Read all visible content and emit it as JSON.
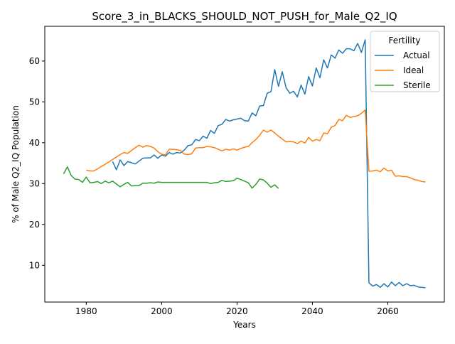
{
  "chart_data": {
    "type": "line",
    "title": "Score_3_in_BLACKS_SHOULD_NOT_PUSH_for_Male_Q2_IQ",
    "xlabel": "Years",
    "ylabel": "% of Male Q2_IQ Population",
    "xlim": [
      1969,
      2075
    ],
    "ylim": [
      1,
      68.5
    ],
    "xticks": [
      1980,
      2000,
      2020,
      2040,
      2060
    ],
    "yticks": [
      10,
      20,
      30,
      40,
      50,
      60
    ],
    "grid": false,
    "legend": {
      "title": "Fertility",
      "position": "top-right"
    },
    "series": [
      {
        "name": "Actual",
        "color": "#1f77b4",
        "points": [
          [
            1987,
            35.4
          ],
          [
            1988,
            33.4
          ],
          [
            1989,
            35.8
          ],
          [
            1990,
            34.4
          ],
          [
            1991,
            35.4
          ],
          [
            1992,
            35.1
          ],
          [
            1993,
            34.8
          ],
          [
            1994,
            35.5
          ],
          [
            1995,
            36.2
          ],
          [
            1996,
            36.3
          ],
          [
            1997,
            36.3
          ],
          [
            1998,
            37.0
          ],
          [
            1999,
            36.2
          ],
          [
            2000,
            37.0
          ],
          [
            2001,
            36.7
          ],
          [
            2002,
            37.6
          ],
          [
            2003,
            37.2
          ],
          [
            2004,
            37.6
          ],
          [
            2005,
            37.5
          ],
          [
            2006,
            38.2
          ],
          [
            2007,
            39.3
          ],
          [
            2008,
            39.5
          ],
          [
            2009,
            40.8
          ],
          [
            2010,
            40.5
          ],
          [
            2011,
            41.6
          ],
          [
            2012,
            41.1
          ],
          [
            2013,
            43.0
          ],
          [
            2014,
            42.3
          ],
          [
            2015,
            44.2
          ],
          [
            2016,
            44.5
          ],
          [
            2017,
            45.7
          ],
          [
            2018,
            45.3
          ],
          [
            2019,
            45.6
          ],
          [
            2020,
            45.8
          ],
          [
            2021,
            46.0
          ],
          [
            2022,
            45.4
          ],
          [
            2023,
            45.3
          ],
          [
            2024,
            47.3
          ],
          [
            2025,
            46.6
          ],
          [
            2026,
            49.0
          ],
          [
            2027,
            49.1
          ],
          [
            2028,
            52.1
          ],
          [
            2029,
            52.5
          ],
          [
            2030,
            57.9
          ],
          [
            2031,
            53.8
          ],
          [
            2032,
            57.4
          ],
          [
            2033,
            53.5
          ],
          [
            2034,
            52.1
          ],
          [
            2035,
            52.6
          ],
          [
            2036,
            51.2
          ],
          [
            2037,
            54.1
          ],
          [
            2038,
            51.9
          ],
          [
            2039,
            56.2
          ],
          [
            2040,
            53.9
          ],
          [
            2041,
            58.3
          ],
          [
            2042,
            55.9
          ],
          [
            2043,
            60.3
          ],
          [
            2044,
            58.3
          ],
          [
            2045,
            61.5
          ],
          [
            2046,
            60.7
          ],
          [
            2047,
            62.7
          ],
          [
            2048,
            61.9
          ],
          [
            2049,
            63.0
          ],
          [
            2050,
            63.0
          ],
          [
            2051,
            62.5
          ],
          [
            2052,
            64.3
          ],
          [
            2053,
            62.1
          ],
          [
            2054,
            65.2
          ],
          [
            2055,
            5.7
          ],
          [
            2056,
            4.9
          ],
          [
            2057,
            5.3
          ],
          [
            2058,
            4.6
          ],
          [
            2059,
            5.5
          ],
          [
            2060,
            4.7
          ],
          [
            2061,
            5.9
          ],
          [
            2062,
            5.0
          ],
          [
            2063,
            5.8
          ],
          [
            2064,
            5.0
          ],
          [
            2065,
            5.5
          ],
          [
            2066,
            5.0
          ],
          [
            2067,
            5.1
          ],
          [
            2068,
            4.7
          ],
          [
            2069,
            4.6
          ],
          [
            2070,
            4.5
          ]
        ]
      },
      {
        "name": "Ideal",
        "color": "#ff7f0e",
        "points": [
          [
            1980,
            33.3
          ],
          [
            1981,
            33.1
          ],
          [
            1982,
            33.1
          ],
          [
            1983,
            33.6
          ],
          [
            1984,
            34.2
          ],
          [
            1985,
            34.7
          ],
          [
            1986,
            35.3
          ],
          [
            1987,
            35.9
          ],
          [
            1988,
            36.5
          ],
          [
            1989,
            37.1
          ],
          [
            1990,
            37.6
          ],
          [
            1991,
            37.4
          ],
          [
            1992,
            38.1
          ],
          [
            1993,
            38.8
          ],
          [
            1994,
            39.4
          ],
          [
            1995,
            38.9
          ],
          [
            1996,
            39.3
          ],
          [
            1997,
            39.1
          ],
          [
            1998,
            38.7
          ],
          [
            1999,
            37.8
          ],
          [
            2000,
            37.2
          ],
          [
            2001,
            37.0
          ],
          [
            2002,
            38.4
          ],
          [
            2003,
            38.4
          ],
          [
            2004,
            38.3
          ],
          [
            2005,
            38.1
          ],
          [
            2006,
            37.2
          ],
          [
            2007,
            37.1
          ],
          [
            2008,
            37.3
          ],
          [
            2009,
            38.7
          ],
          [
            2010,
            38.8
          ],
          [
            2011,
            38.8
          ],
          [
            2012,
            39.1
          ],
          [
            2013,
            39.0
          ],
          [
            2014,
            38.8
          ],
          [
            2015,
            38.4
          ],
          [
            2016,
            38.0
          ],
          [
            2017,
            38.4
          ],
          [
            2018,
            38.2
          ],
          [
            2019,
            38.5
          ],
          [
            2020,
            38.2
          ],
          [
            2021,
            38.6
          ],
          [
            2022,
            38.9
          ],
          [
            2023,
            39.1
          ],
          [
            2024,
            40.0
          ],
          [
            2025,
            40.8
          ],
          [
            2026,
            41.8
          ],
          [
            2027,
            43.1
          ],
          [
            2028,
            42.6
          ],
          [
            2029,
            43.1
          ],
          [
            2030,
            42.4
          ],
          [
            2031,
            41.6
          ],
          [
            2032,
            40.9
          ],
          [
            2033,
            40.2
          ],
          [
            2034,
            40.3
          ],
          [
            2035,
            40.2
          ],
          [
            2036,
            39.8
          ],
          [
            2037,
            40.4
          ],
          [
            2038,
            39.9
          ],
          [
            2039,
            41.3
          ],
          [
            2040,
            40.4
          ],
          [
            2041,
            40.8
          ],
          [
            2042,
            40.5
          ],
          [
            2043,
            42.4
          ],
          [
            2044,
            42.2
          ],
          [
            2045,
            43.8
          ],
          [
            2046,
            44.2
          ],
          [
            2047,
            45.7
          ],
          [
            2048,
            45.4
          ],
          [
            2049,
            46.7
          ],
          [
            2050,
            46.2
          ],
          [
            2051,
            46.4
          ],
          [
            2052,
            46.6
          ],
          [
            2053,
            47.2
          ],
          [
            2054,
            48.0
          ],
          [
            2055,
            33.0
          ],
          [
            2056,
            33.1
          ],
          [
            2057,
            33.3
          ],
          [
            2058,
            32.9
          ],
          [
            2059,
            33.8
          ],
          [
            2060,
            33.1
          ],
          [
            2061,
            33.3
          ],
          [
            2062,
            31.8
          ],
          [
            2063,
            31.9
          ],
          [
            2064,
            31.7
          ],
          [
            2065,
            31.7
          ],
          [
            2066,
            31.4
          ],
          [
            2067,
            31.0
          ],
          [
            2068,
            30.8
          ],
          [
            2069,
            30.5
          ],
          [
            2070,
            30.4
          ]
        ]
      },
      {
        "name": "Sterile",
        "color": "#2ca02c",
        "points": [
          [
            1974,
            32.4
          ],
          [
            1975,
            34.1
          ],
          [
            1976,
            32.0
          ],
          [
            1977,
            31.1
          ],
          [
            1978,
            31.0
          ],
          [
            1979,
            30.3
          ],
          [
            1980,
            31.6
          ],
          [
            1981,
            30.2
          ],
          [
            1982,
            30.3
          ],
          [
            1983,
            30.5
          ],
          [
            1984,
            30.0
          ],
          [
            1985,
            30.6
          ],
          [
            1986,
            30.2
          ],
          [
            1987,
            30.6
          ],
          [
            1988,
            29.9
          ],
          [
            1989,
            29.2
          ],
          [
            1990,
            29.8
          ],
          [
            1991,
            30.3
          ],
          [
            1992,
            29.4
          ],
          [
            1993,
            29.5
          ],
          [
            1994,
            29.5
          ],
          [
            1995,
            30.1
          ],
          [
            1996,
            30.1
          ],
          [
            1997,
            30.2
          ],
          [
            1998,
            30.1
          ],
          [
            1999,
            30.4
          ],
          [
            2000,
            30.3
          ],
          [
            2001,
            30.3
          ],
          [
            2002,
            30.3
          ],
          [
            2003,
            30.3
          ],
          [
            2004,
            30.3
          ],
          [
            2005,
            30.3
          ],
          [
            2006,
            30.3
          ],
          [
            2007,
            30.3
          ],
          [
            2008,
            30.3
          ],
          [
            2009,
            30.3
          ],
          [
            2010,
            30.3
          ],
          [
            2011,
            30.3
          ],
          [
            2012,
            30.3
          ],
          [
            2013,
            30.0
          ],
          [
            2014,
            30.2
          ],
          [
            2015,
            30.3
          ],
          [
            2016,
            30.8
          ],
          [
            2017,
            30.5
          ],
          [
            2018,
            30.6
          ],
          [
            2019,
            30.7
          ],
          [
            2020,
            31.3
          ],
          [
            2021,
            31.0
          ],
          [
            2022,
            30.6
          ],
          [
            2023,
            30.2
          ],
          [
            2024,
            28.9
          ],
          [
            2025,
            29.8
          ],
          [
            2026,
            31.1
          ],
          [
            2027,
            30.9
          ],
          [
            2028,
            30.1
          ],
          [
            2029,
            29.1
          ],
          [
            2030,
            29.7
          ],
          [
            2031,
            28.8
          ]
        ]
      }
    ]
  }
}
